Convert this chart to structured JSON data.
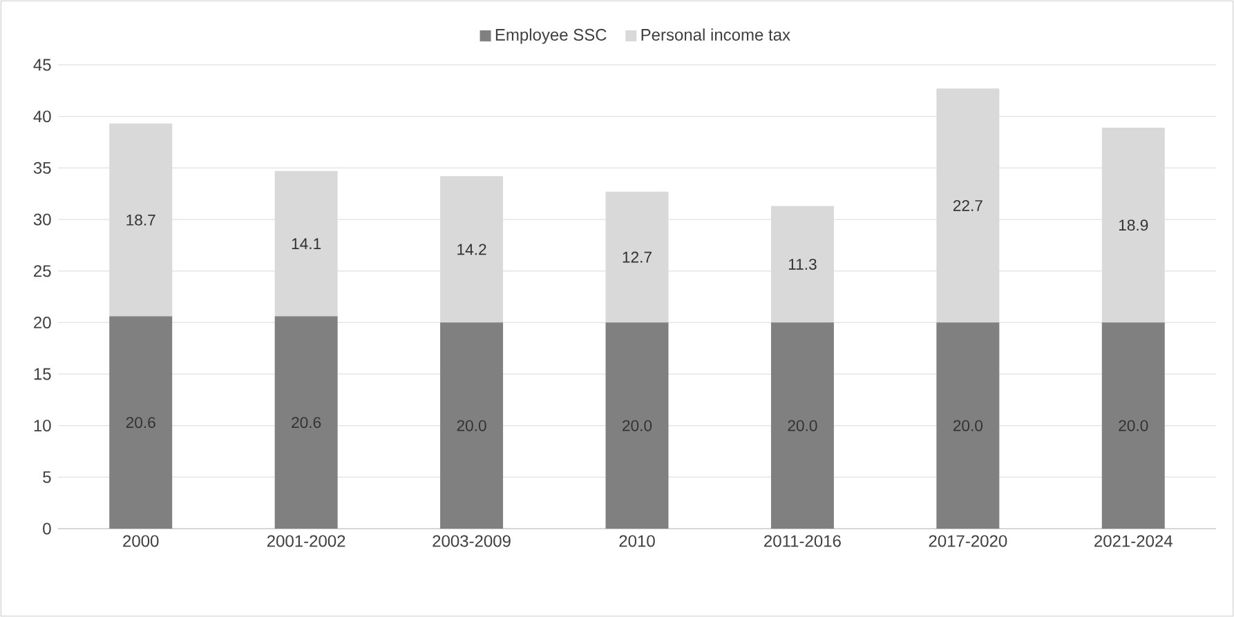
{
  "chart_data": {
    "type": "bar",
    "stacked": true,
    "categories": [
      "2000",
      "2001-2002",
      "2003-2009",
      "2010",
      "2011-2016",
      "2017-2020",
      "2021-2024"
    ],
    "series": [
      {
        "name": "Employee SSC",
        "color": "#808080",
        "values": [
          20.6,
          20.6,
          20.0,
          20.0,
          20.0,
          20.0,
          20.0
        ],
        "value_labels": [
          "20.6",
          "20.6",
          "20.0",
          "20.0",
          "20.0",
          "20.0",
          "20.0"
        ]
      },
      {
        "name": "Personal income tax",
        "color": "#d9d9d9",
        "values": [
          18.7,
          14.1,
          14.2,
          12.7,
          11.3,
          22.7,
          18.9
        ],
        "value_labels": [
          "18.7",
          "14.1",
          "14.2",
          "12.7",
          "11.3",
          "22.7",
          "18.9"
        ]
      }
    ],
    "ylim": [
      0,
      45
    ],
    "yticks": [
      0,
      5,
      10,
      15,
      20,
      25,
      30,
      35,
      40,
      45
    ],
    "grid": "y",
    "legend": "top"
  }
}
